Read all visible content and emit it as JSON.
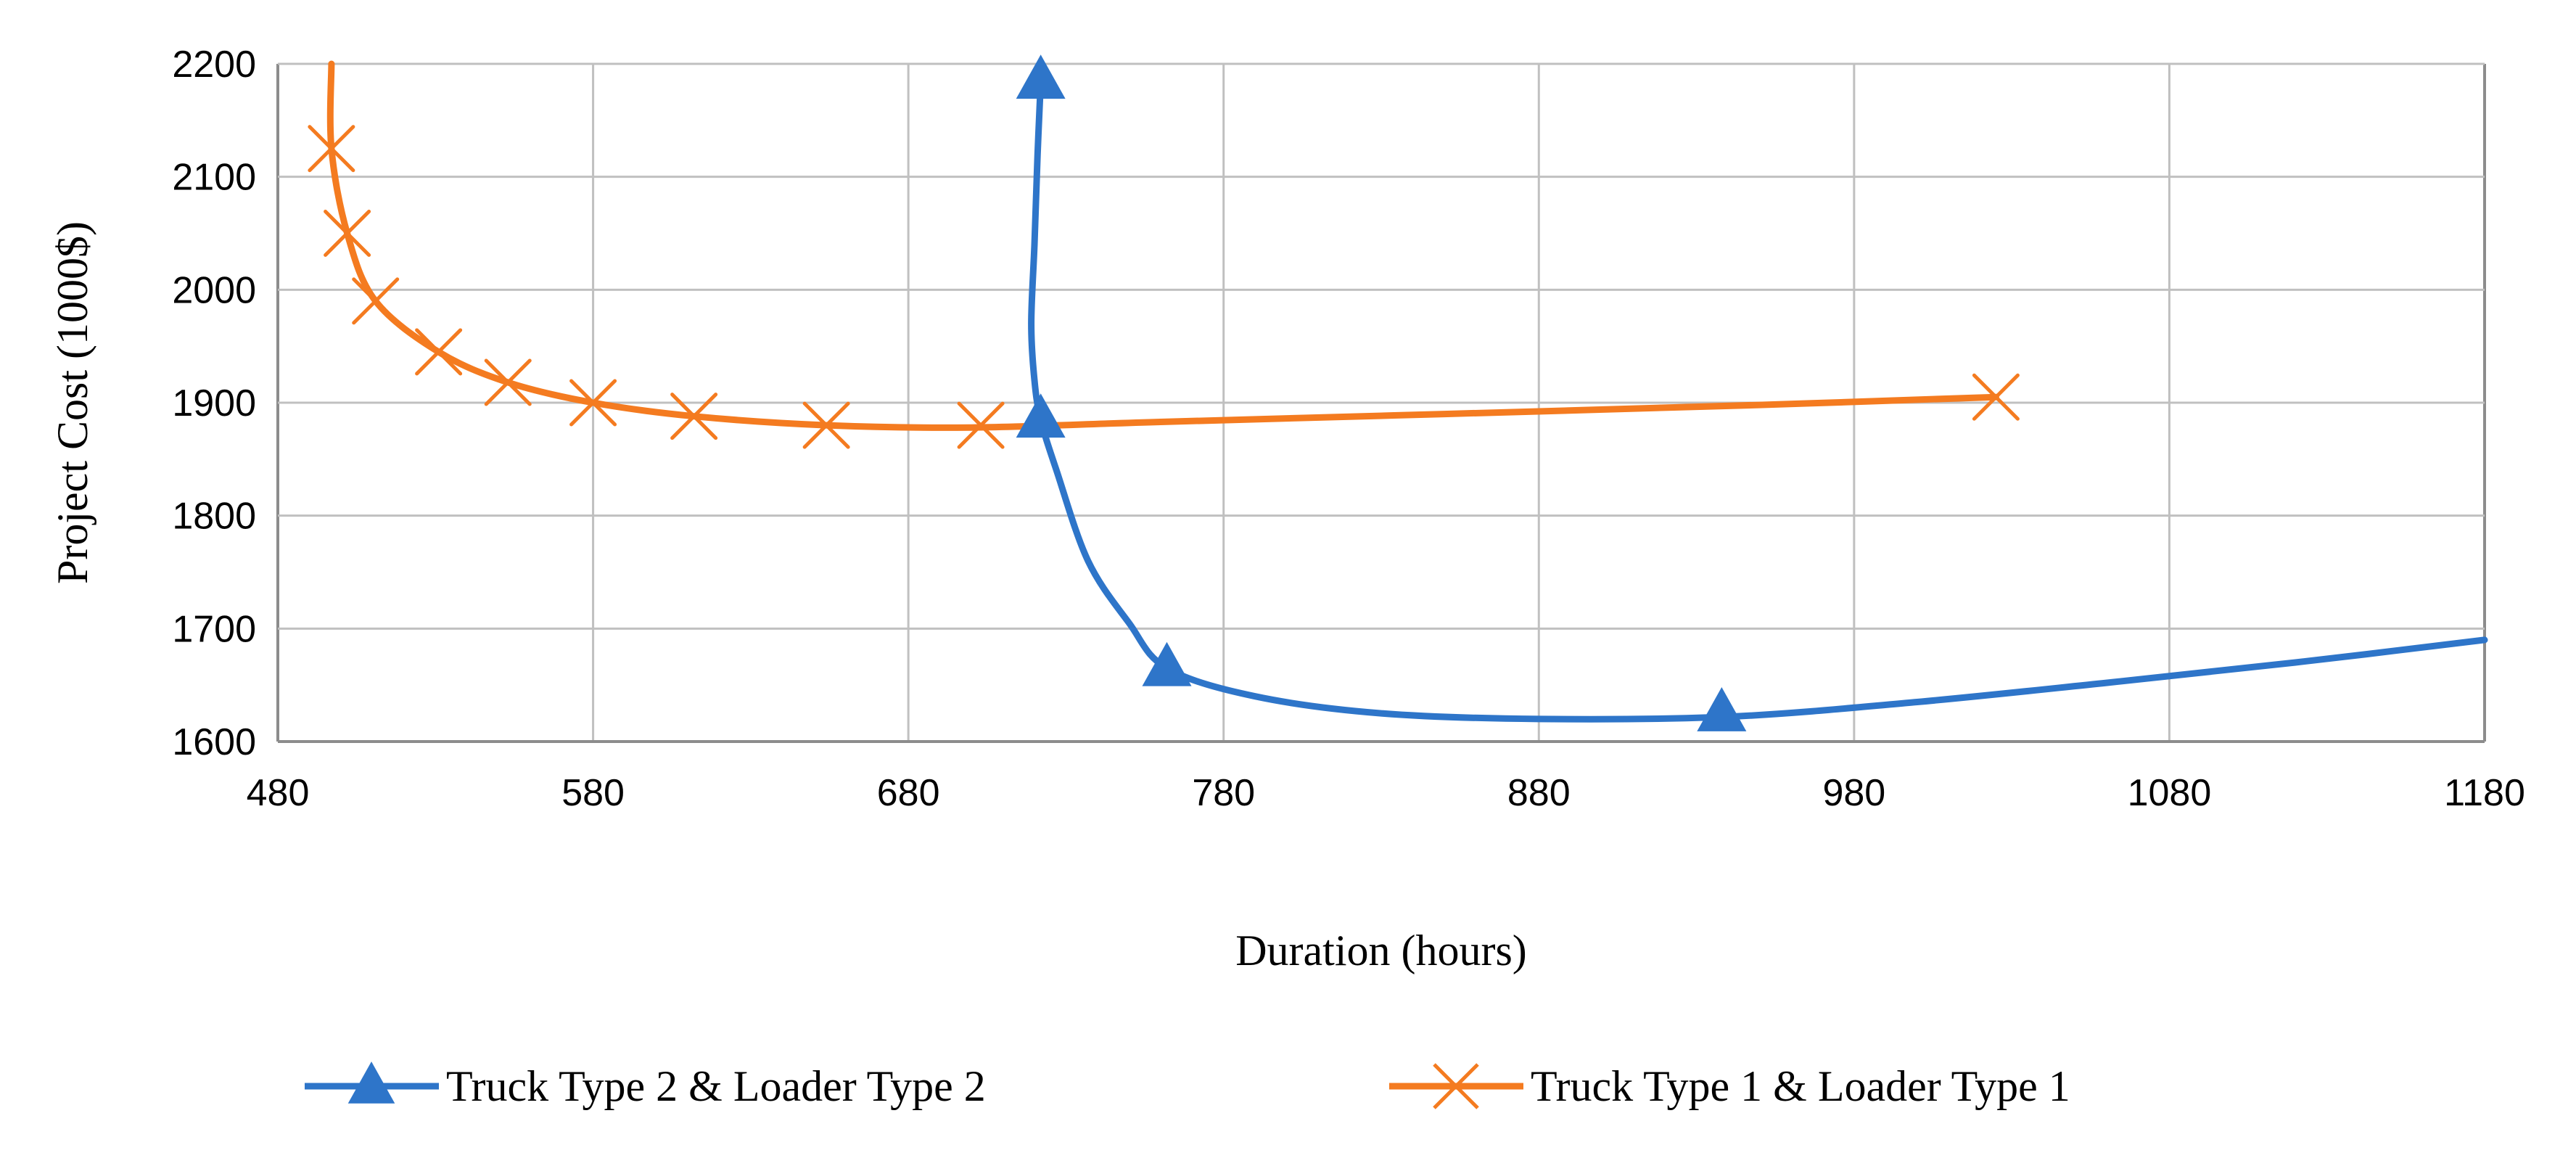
{
  "chart_data": {
    "type": "line",
    "title": "",
    "xlabel": "Duration (hours)",
    "ylabel": "Project Cost (1000$)",
    "xlim": [
      480,
      1180
    ],
    "ylim": [
      1600,
      2200
    ],
    "xticks": [
      480,
      580,
      680,
      780,
      880,
      980,
      1080,
      1180
    ],
    "yticks": [
      1600,
      1700,
      1800,
      1900,
      2000,
      2100,
      2200
    ],
    "x_tick_labels": [
      "480",
      "580",
      "680",
      "780",
      "880",
      "980",
      "1080",
      "1180"
    ],
    "y_tick_labels": [
      "1600",
      "1700",
      "1800",
      "1900",
      "2000",
      "2100",
      "2200"
    ],
    "grid": true,
    "legend_position": "bottom",
    "series": [
      {
        "name": "Truck Type 2 & Loader Type 2",
        "color": "#2E75C9",
        "marker": "triangle",
        "curve": [
          [
            722,
            2185
          ],
          [
            721,
            2120
          ],
          [
            720,
            2040
          ],
          [
            719,
            1970
          ],
          [
            720,
            1920
          ],
          [
            722,
            1885
          ],
          [
            727,
            1840
          ],
          [
            737,
            1760
          ],
          [
            750,
            1705
          ],
          [
            762,
            1665
          ],
          [
            790,
            1640
          ],
          [
            830,
            1625
          ],
          [
            880,
            1620
          ],
          [
            940,
            1622
          ],
          [
            1000,
            1635
          ],
          [
            1060,
            1652
          ],
          [
            1120,
            1670
          ],
          [
            1180,
            1690
          ]
        ],
        "points": [
          [
            722,
            2185
          ],
          [
            722,
            1885
          ],
          [
            762,
            1665
          ],
          [
            938,
            1625
          ]
        ]
      },
      {
        "name": "Truck Type 1 & Loader Type 1",
        "color": "#F47B20",
        "marker": "x",
        "curve": [
          [
            497,
            2200
          ],
          [
            497,
            2125
          ],
          [
            502,
            2050
          ],
          [
            511,
            1990
          ],
          [
            531,
            1945
          ],
          [
            553,
            1918
          ],
          [
            580,
            1900
          ],
          [
            612,
            1888
          ],
          [
            654,
            1880
          ],
          [
            700,
            1878
          ],
          [
            760,
            1883
          ],
          [
            850,
            1890
          ],
          [
            950,
            1898
          ],
          [
            1025,
            1905
          ]
        ],
        "points": [
          [
            497,
            2125
          ],
          [
            502,
            2050
          ],
          [
            511,
            1990
          ],
          [
            531,
            1945
          ],
          [
            553,
            1918
          ],
          [
            580,
            1900
          ],
          [
            612,
            1888
          ],
          [
            654,
            1880
          ],
          [
            703,
            1880
          ],
          [
            1025,
            1905
          ]
        ]
      }
    ]
  }
}
